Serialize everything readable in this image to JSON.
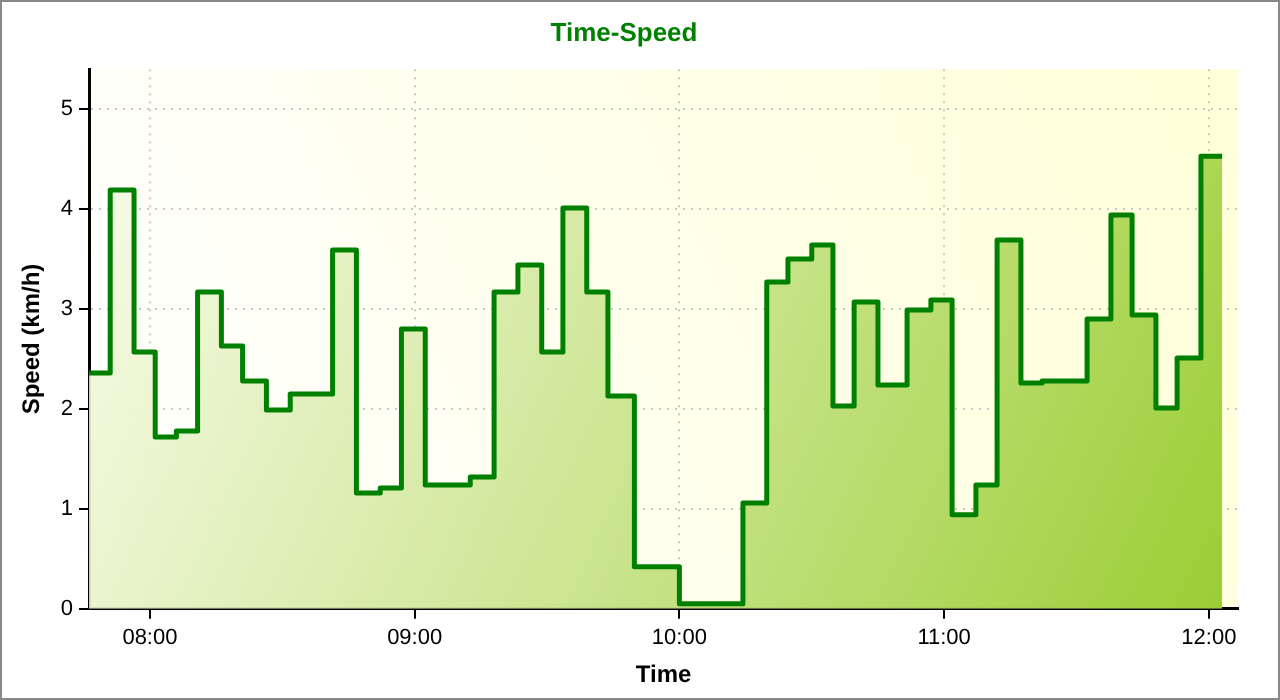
{
  "chart_data": {
    "type": "area",
    "title": "Time-Speed",
    "xlabel": "Time",
    "ylabel": "Speed (km/h)",
    "x": [
      7.77,
      7.85,
      7.85,
      7.94,
      7.94,
      8.02,
      8.02,
      8.1,
      8.1,
      8.18,
      8.18,
      8.27,
      8.27,
      8.35,
      8.35,
      8.44,
      8.44,
      8.53,
      8.53,
      8.69,
      8.69,
      8.78,
      8.78,
      8.87,
      8.87,
      8.95,
      8.95,
      9.04,
      9.04,
      9.21,
      9.21,
      9.3,
      9.3,
      9.39,
      9.39,
      9.48,
      9.48,
      9.56,
      9.56,
      9.65,
      9.65,
      9.73,
      9.73,
      9.83,
      9.83,
      10.0,
      10.0,
      10.24,
      10.24,
      10.33,
      10.33,
      10.41,
      10.41,
      10.5,
      10.5,
      10.58,
      10.58,
      10.66,
      10.66,
      10.75,
      10.75,
      10.86,
      10.86,
      10.95,
      10.95,
      11.03,
      11.03,
      11.12,
      11.12,
      11.2,
      11.2,
      11.29,
      11.29,
      11.37,
      11.37,
      11.54,
      11.54,
      11.63,
      11.63,
      11.71,
      11.71,
      11.8,
      11.8,
      11.88,
      11.88,
      11.97,
      11.97,
      12.05
    ],
    "series": [
      {
        "color": "#008000",
        "values": [
          2.36,
          2.36,
          4.19,
          4.19,
          2.57,
          2.57,
          1.72,
          1.72,
          1.78,
          1.78,
          3.17,
          3.17,
          2.63,
          2.63,
          2.28,
          2.28,
          1.99,
          1.99,
          2.15,
          2.15,
          3.59,
          3.59,
          1.16,
          1.16,
          1.21,
          1.21,
          2.8,
          2.8,
          1.24,
          1.24,
          1.32,
          1.32,
          3.17,
          3.17,
          3.44,
          3.44,
          2.57,
          2.57,
          4.01,
          4.01,
          3.17,
          3.17,
          2.13,
          2.13,
          0.42,
          0.42,
          0.05,
          0.05,
          1.06,
          1.06,
          3.27,
          3.27,
          3.5,
          3.5,
          3.64,
          3.64,
          2.03,
          2.03,
          3.07,
          3.07,
          2.24,
          2.24,
          2.99,
          2.99,
          3.09,
          3.09,
          0.94,
          0.94,
          1.24,
          1.24,
          3.69,
          3.69,
          2.26,
          2.26,
          2.28,
          2.28,
          2.9,
          2.9,
          3.94,
          3.94,
          2.94,
          2.94,
          2.01,
          2.01,
          2.51,
          2.51,
          4.53,
          4.53
        ]
      }
    ],
    "xlim": [
      7.77,
      12.11
    ],
    "xticks": [
      {
        "value": 8,
        "label": "08:00"
      },
      {
        "value": 9,
        "label": "09:00"
      },
      {
        "value": 10,
        "label": "10:00"
      },
      {
        "value": 11,
        "label": "11:00"
      },
      {
        "value": 12,
        "label": "12:00"
      }
    ],
    "ylim": [
      0,
      5.4
    ],
    "yticks": [
      0,
      1,
      2,
      3,
      4,
      5
    ],
    "grid": true,
    "legend": false
  }
}
